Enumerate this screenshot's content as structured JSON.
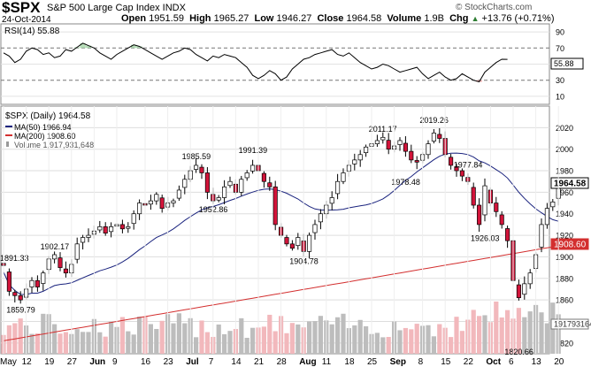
{
  "header": {
    "symbol": "$SPX",
    "name": "S&P 500 Large Cap Index INDX",
    "copyright": "© StockCharts.com",
    "date": "24-Oct-2014",
    "open_label": "Open",
    "open": "1951.59",
    "high_label": "High",
    "high": "1965.27",
    "low_label": "Low",
    "low": "1946.27",
    "close_label": "Close",
    "close": "1964.58",
    "volume_label": "Volume",
    "volume": "1.9B",
    "chg_label": "Chg",
    "chg": "+13.76 (+0.71%)",
    "chg_arrow": "▲"
  },
  "colors": {
    "up": "#ffffff",
    "down": "#d2143a",
    "candle_outline": "#000000",
    "ma50": "#1a237e",
    "ma200": "#d32f2f",
    "volume_up": "#bdbdbd",
    "volume_down": "#f2b8bc",
    "grid": "#dddddd"
  },
  "chart_data": {
    "type": "candlestick",
    "title": "$SPX S&P 500 Large Cap Index INDX",
    "rsi": {
      "label": "RSI(14) 55.88",
      "value": 55.88,
      "ylim": [
        0,
        100
      ],
      "yticks": [
        "90",
        "70",
        "50",
        "30",
        "10"
      ],
      "levels": [
        70,
        30
      ],
      "values": [
        64,
        60,
        52,
        56,
        66,
        70,
        68,
        62,
        64,
        58,
        60,
        68,
        66,
        71,
        76,
        73,
        70,
        64,
        60,
        56,
        62,
        66,
        70,
        74,
        72,
        68,
        64,
        60,
        56,
        60,
        64,
        66,
        70,
        68,
        62,
        58,
        54,
        60,
        58,
        62,
        60,
        58,
        52,
        46,
        36,
        32,
        36,
        42,
        38,
        30,
        34,
        44,
        50,
        56,
        58,
        62,
        64,
        66,
        68,
        62,
        60,
        64,
        58,
        52,
        48,
        44,
        46,
        50,
        48,
        44,
        40,
        42,
        44,
        46,
        38,
        32,
        36,
        40,
        34,
        30,
        32,
        38,
        34,
        30,
        28,
        40,
        46,
        52,
        56,
        55.88
      ]
    },
    "price": {
      "legend": [
        {
          "name": "$SPX (Daily) 1964.58"
        },
        {
          "name": "MA(50) 1966.94"
        },
        {
          "name": "MA(200) 1908.60"
        },
        {
          "name": "Volume 1,917,931,648"
        }
      ],
      "ylim": [
        1810,
        2040
      ],
      "yticks": [
        "2020",
        "2000",
        "1980",
        "1960",
        "1940",
        "1920",
        "1900",
        "1880",
        "1860",
        "1840",
        "1820"
      ],
      "last_price_tag": "1964.58",
      "ma200_tag": "1908.60",
      "volume_tag": "1917931648",
      "close": [
        1892,
        1868,
        1864,
        1860,
        1870,
        1878,
        1872,
        1885,
        1898,
        1902,
        1890,
        1885,
        1893,
        1912,
        1918,
        1920,
        1924,
        1928,
        1922,
        1928,
        1930,
        1926,
        1928,
        1940,
        1950,
        1948,
        1952,
        1958,
        1945,
        1950,
        1952,
        1962,
        1972,
        1980,
        1985,
        1978,
        1960,
        1952,
        1955,
        1965,
        1970,
        1960,
        1972,
        1978,
        1985,
        1980,
        1970,
        1965,
        1930,
        1920,
        1912,
        1908,
        1918,
        1905,
        1920,
        1930,
        1940,
        1948,
        1955,
        1970,
        1978,
        1985,
        1990,
        1995,
        2002,
        2005,
        2008,
        2011,
        2000,
        2003,
        2008,
        1998,
        1990,
        1988,
        1995,
        2005,
        2015,
        2010,
        1995,
        1985,
        1980,
        1975,
        1970,
        1948,
        1930,
        1966,
        1950,
        1942,
        1930,
        1915,
        1878,
        1862,
        1875,
        1885,
        1902,
        1930,
        1945,
        1951,
        1964.58
      ]
    },
    "annotations": [
      {
        "text": "1891.33",
        "value": 1891.33
      },
      {
        "text": "1859.79",
        "value": 1859.79
      },
      {
        "text": "1902.17",
        "value": 1902.17
      },
      {
        "text": "1985.59",
        "value": 1985.59
      },
      {
        "text": "1952.86",
        "value": 1952.86
      },
      {
        "text": "1991.39",
        "value": 1991.39
      },
      {
        "text": "1904.78",
        "value": 1904.78
      },
      {
        "text": "2011.17",
        "value": 2011.17
      },
      {
        "text": "1978.48",
        "value": 1978.48
      },
      {
        "text": "2019.26",
        "value": 2019.26
      },
      {
        "text": "1977.84",
        "value": 1977.84
      },
      {
        "text": "1926.03",
        "value": 1926.03
      },
      {
        "text": "1820.66",
        "value": 1820.66
      }
    ],
    "x_ticks": [
      "May",
      "12",
      "19",
      "27",
      "Jun",
      "9",
      "16",
      "23",
      "Jul",
      "7",
      "14",
      "21",
      "28",
      "Aug",
      "11",
      "18",
      "25",
      "Sep",
      "8",
      "15",
      "22",
      "Oct",
      "6",
      "13",
      "20"
    ],
    "bold_ticks": [
      "Jun",
      "Jul",
      "Aug",
      "Sep",
      "Oct"
    ],
    "grid": true
  }
}
